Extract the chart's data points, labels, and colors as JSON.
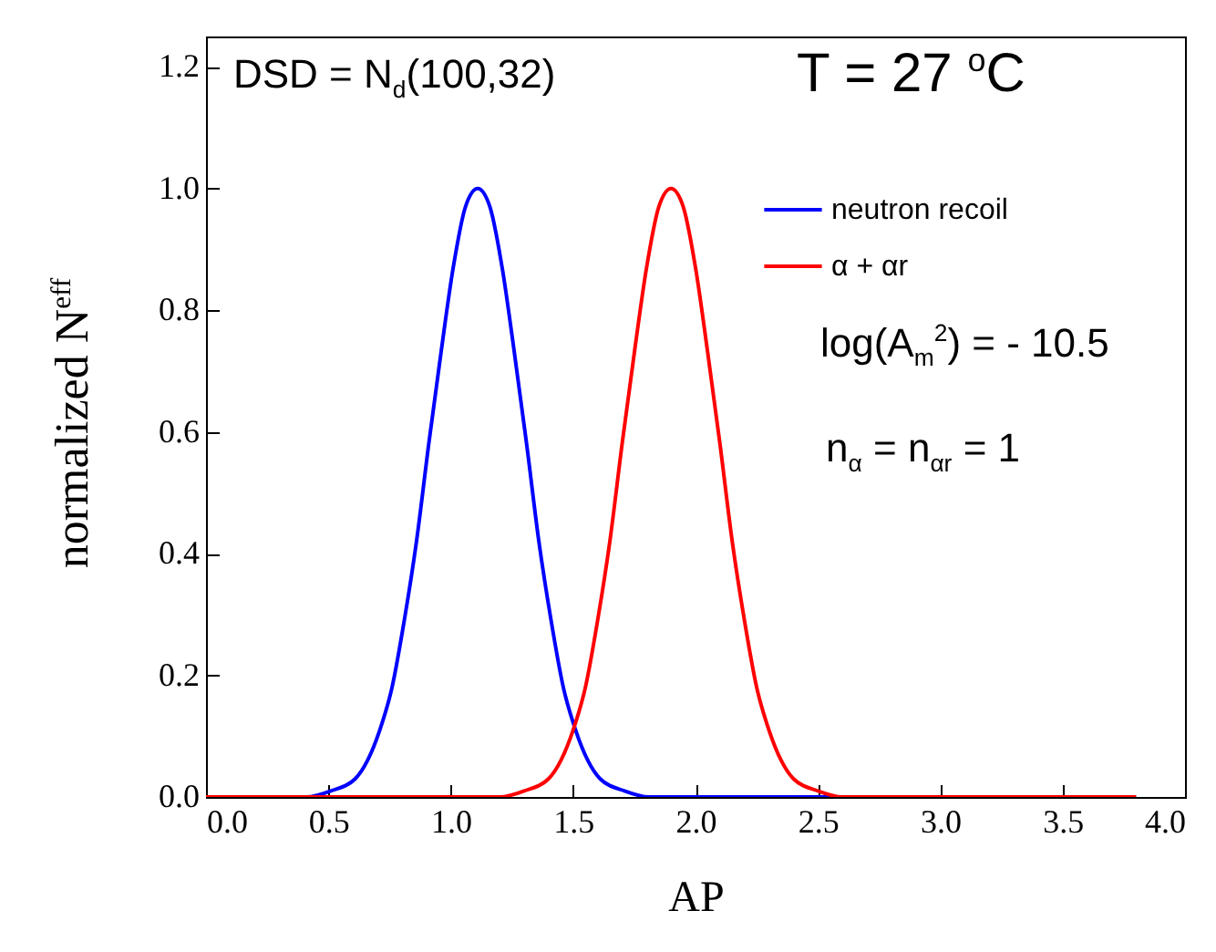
{
  "chart_data": {
    "type": "line",
    "xlabel": "AP",
    "ylabel": "normalized N$^{eff}$",
    "annotations": [
      "DSD = N$_{d}$(100,32)",
      "T = 27 $^{o}$C",
      "log(A$_{m}$$^{2}$) = - 10.5",
      "n$_{α}$ = n$_{αr}$ = 1"
    ],
    "series": [
      {
        "name": "neutron recoil",
        "color": "#0000ff",
        "x": [
          0,
          0.41,
          0.51,
          0.61,
          0.66,
          0.71,
          0.76,
          0.81,
          0.86,
          0.91,
          0.96,
          1.01,
          1.06,
          1.11,
          1.16,
          1.21,
          1.26,
          1.31,
          1.36,
          1.41,
          1.46,
          1.51,
          1.56,
          1.61,
          1.71,
          1.81,
          3.8
        ],
        "values": [
          0,
          0,
          0.01,
          0.03,
          0.06,
          0.11,
          0.18,
          0.29,
          0.42,
          0.58,
          0.73,
          0.87,
          0.97,
          1,
          0.97,
          0.87,
          0.73,
          0.58,
          0.42,
          0.29,
          0.18,
          0.11,
          0.06,
          0.03,
          0.01,
          0,
          0
        ]
      },
      {
        "name": "α + αr",
        "color": "#ff0000",
        "x": [
          0,
          1.2,
          1.3,
          1.4,
          1.45,
          1.5,
          1.55,
          1.6,
          1.65,
          1.7,
          1.75,
          1.8,
          1.85,
          1.9,
          1.95,
          2.0,
          2.05,
          2.1,
          2.15,
          2.2,
          2.25,
          2.3,
          2.35,
          2.4,
          2.5,
          2.6,
          3.8
        ],
        "values": [
          0,
          0,
          0.01,
          0.03,
          0.06,
          0.11,
          0.18,
          0.29,
          0.42,
          0.58,
          0.73,
          0.87,
          0.97,
          1,
          0.97,
          0.87,
          0.73,
          0.58,
          0.42,
          0.29,
          0.18,
          0.11,
          0.06,
          0.03,
          0.01,
          0,
          0
        ]
      }
    ],
    "xlim": [
      0,
      4
    ],
    "ylim": [
      0,
      1.25
    ],
    "xticks": [
      {
        "value": 0,
        "label": "0.0"
      },
      0.5,
      {
        "value": 1,
        "label": "1.0"
      },
      1.5,
      {
        "value": 2,
        "label": "2.0"
      },
      2.5,
      {
        "value": 3,
        "label": "3.0"
      },
      3.5,
      {
        "value": 4,
        "label": "4.0"
      }
    ],
    "yticks": [
      {
        "value": 0,
        "label": "0.0"
      },
      0.2,
      0.4,
      0.6,
      0.8,
      {
        "value": 1,
        "label": "1.0"
      },
      1.2
    ],
    "legend": "top right",
    "grid": false
  }
}
